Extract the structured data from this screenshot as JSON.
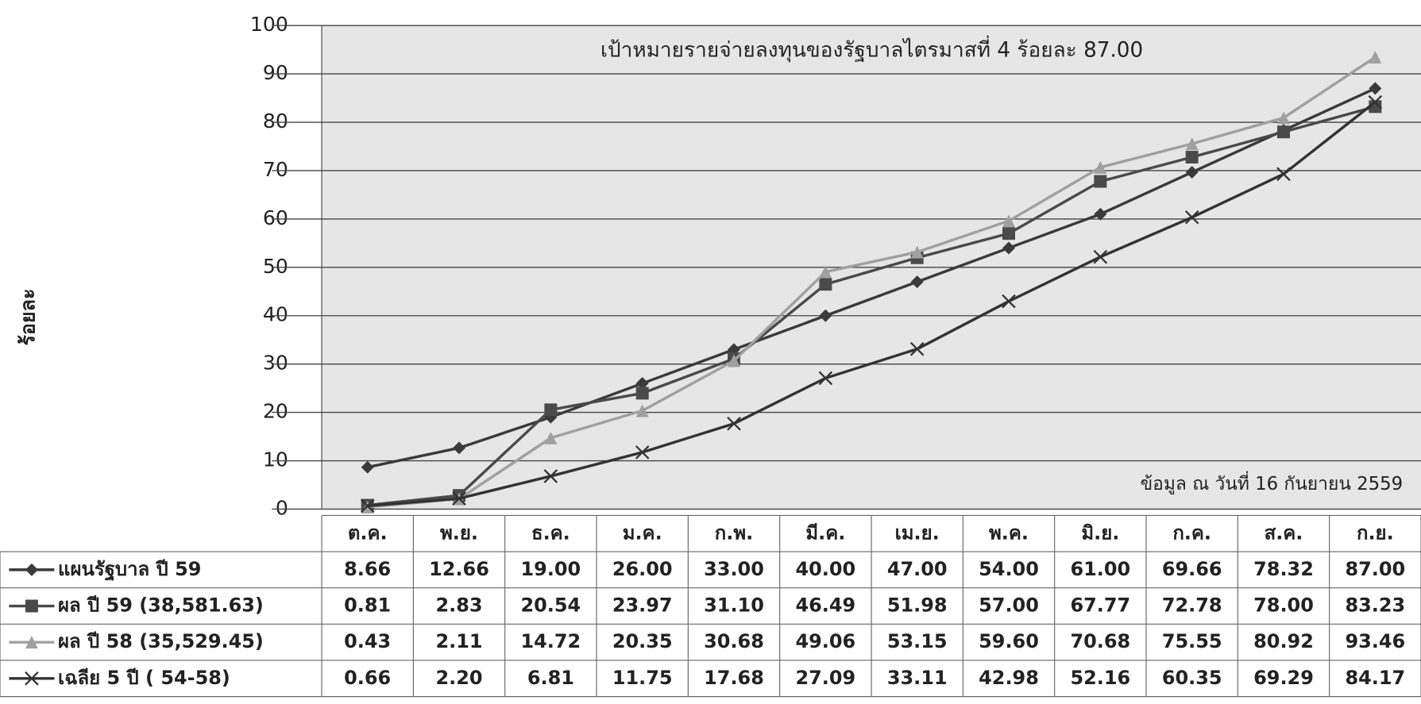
{
  "chart_data": {
    "type": "line",
    "annotation": "เป้าหมายรายจ่ายลงทุนของรัฐบาลไตรมาสที่  4 ร้อยละ  87.00",
    "note": "ข้อมูล ณ วันที่ 16 กันยายน 2559",
    "y_label": "ร้อยละ",
    "categories": [
      "ต.ค.",
      "พ.ย.",
      "ธ.ค.",
      "ม.ค.",
      "ก.พ.",
      "มี.ค.",
      "เม.ย.",
      "พ.ค.",
      "มิ.ย.",
      "ก.ค.",
      "ส.ค.",
      "ก.ย."
    ],
    "ylim": [
      0,
      100
    ],
    "yticks": [
      0,
      10,
      20,
      30,
      40,
      50,
      60,
      70,
      80,
      90,
      100
    ],
    "grid": true,
    "series": [
      {
        "name": "แผนรัฐบาล ปี 59",
        "color": "#3a3a3a",
        "marker": "diamond",
        "values": [
          8.66,
          12.66,
          19.0,
          26.0,
          33.0,
          40.0,
          47.0,
          54.0,
          61.0,
          69.66,
          78.32,
          87.0
        ],
        "value_labels": [
          "8.66",
          "12.66",
          "19.00",
          "26.00",
          "33.00",
          "40.00",
          "47.00",
          "54.00",
          "61.00",
          "69.66",
          "78.32",
          "87.00"
        ]
      },
      {
        "name": "ผล ปี 59 (38,581.63)",
        "color": "#4a4a4a",
        "marker": "square",
        "values": [
          0.81,
          2.83,
          20.54,
          23.97,
          31.1,
          46.49,
          51.98,
          57.0,
          67.77,
          72.78,
          78.0,
          83.23
        ],
        "value_labels": [
          "0.81",
          "2.83",
          "20.54",
          "23.97",
          "31.10",
          "46.49",
          "51.98",
          "57.00",
          "67.77",
          "72.78",
          "78.00",
          "83.23"
        ]
      },
      {
        "name": "ผล ปี 58 (35,529.45)",
        "color": "#a0a0a0",
        "marker": "triangle",
        "values": [
          0.43,
          2.11,
          14.72,
          20.35,
          30.68,
          49.06,
          53.15,
          59.6,
          70.68,
          75.55,
          80.92,
          93.46
        ],
        "value_labels": [
          "0.43",
          "2.11",
          "14.72",
          "20.35",
          "30.68",
          "49.06",
          "53.15",
          "59.60",
          "70.68",
          "75.55",
          "80.92",
          "93.46"
        ]
      },
      {
        "name": "เฉลีย 5  ปี  ( 54-58)",
        "color": "#333333",
        "marker": "x",
        "values": [
          0.66,
          2.2,
          6.81,
          11.75,
          17.68,
          27.09,
          33.11,
          42.98,
          52.16,
          60.35,
          69.29,
          84.17
        ],
        "value_labels": [
          "0.66",
          "2.20",
          "6.81",
          "11.75",
          "17.68",
          "27.09",
          "33.11",
          "42.98",
          "52.16",
          "60.35",
          "69.29",
          "84.17"
        ]
      }
    ]
  }
}
